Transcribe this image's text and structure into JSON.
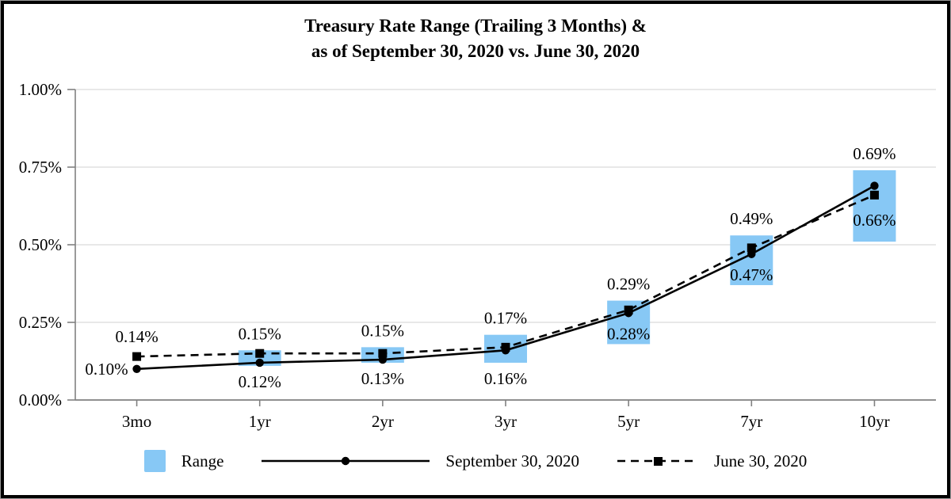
{
  "title": {
    "line1": "Treasury Rate Range (Trailing 3 Months) &",
    "line2": "as of September 30, 2020 vs. June 30, 2020"
  },
  "colors": {
    "bar_fill": "#87C8F5",
    "line": "#000000",
    "gridline": "#D9D9D9",
    "axis": "#808080",
    "text": "#000000",
    "frame_border": "#000000"
  },
  "chart_data": {
    "type": "combo-range-bar-line",
    "title": "Treasury Rate Range (Trailing 3 Months) & as of September 30, 2020 vs. June 30, 2020",
    "categories": [
      "3mo",
      "1yr",
      "2yr",
      "3yr",
      "5yr",
      "7yr",
      "10yr"
    ],
    "y_axis": {
      "min": 0,
      "max": 1,
      "ticks": [
        0,
        0.25,
        0.5,
        0.75,
        1.0
      ],
      "tick_labels": [
        "0.00%",
        "0.25%",
        "0.50%",
        "0.75%",
        "1.00%"
      ],
      "unit": "percent"
    },
    "grid": true,
    "legend_position": "bottom",
    "series": [
      {
        "name": "Range",
        "type": "range-bar",
        "ranges": [
          null,
          [
            0.11,
            0.16
          ],
          [
            0.12,
            0.17
          ],
          [
            0.12,
            0.21
          ],
          [
            0.18,
            0.32
          ],
          [
            0.37,
            0.53
          ],
          [
            0.51,
            0.74
          ]
        ]
      },
      {
        "name": "September 30, 2020",
        "type": "line",
        "line_style": "solid",
        "marker": "circle",
        "values": [
          0.1,
          0.12,
          0.13,
          0.16,
          0.28,
          0.47,
          0.69
        ],
        "point_labels": [
          "0.10%",
          "0.12%",
          "0.13%",
          "0.16%",
          "0.28%",
          "0.47%",
          "0.69%"
        ],
        "label_pos": [
          "left",
          "below",
          "below",
          "below",
          "inside",
          "inside",
          "above"
        ],
        "label_dy": [
          0,
          0,
          0,
          0,
          0,
          0,
          0
        ]
      },
      {
        "name": "June 30, 2020",
        "type": "line",
        "line_style": "dashed",
        "marker": "square",
        "values": [
          0.14,
          0.15,
          0.15,
          0.17,
          0.29,
          0.49,
          0.66
        ],
        "point_labels": [
          "0.14%",
          "0.15%",
          "0.15%",
          "0.17%",
          "0.29%",
          "0.49%",
          "0.66%"
        ],
        "label_pos": [
          "above",
          "above",
          "above",
          "above",
          "above",
          "above",
          "inside"
        ],
        "label_dy": [
          0,
          0,
          0,
          0,
          0,
          0,
          -14
        ]
      }
    ]
  }
}
